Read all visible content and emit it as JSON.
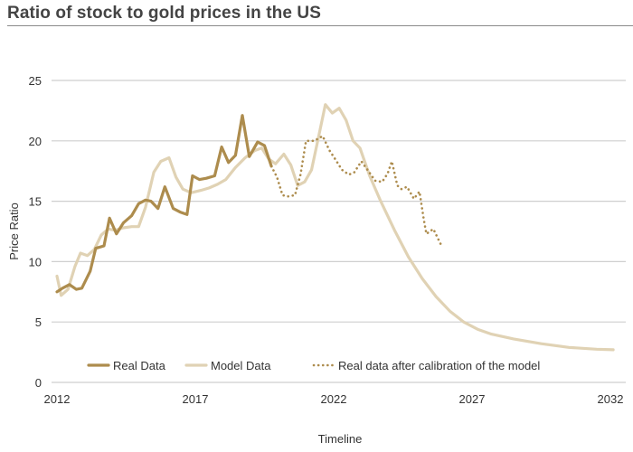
{
  "title": "Ratio of stock to gold prices in the US",
  "chart_data": {
    "type": "line",
    "title": "Ratio of stock to gold prices in the US",
    "xlabel": "Timeline",
    "ylabel": "Price Ratio",
    "xlim": [
      2012,
      2032
    ],
    "ylim": [
      0,
      25
    ],
    "x_ticks": [
      "2012",
      "2017",
      "2022",
      "2027",
      "2032"
    ],
    "y_ticks": [
      "0",
      "5",
      "10",
      "15",
      "20",
      "25"
    ],
    "grid": "horizontal",
    "legend_position": "bottom-inside",
    "series": [
      {
        "name": "Model Data",
        "style": "solid-light",
        "color": "#e0d2b4",
        "points": [
          [
            2012.0,
            8.8
          ],
          [
            2012.15,
            7.2
          ],
          [
            2012.4,
            7.7
          ],
          [
            2012.65,
            9.6
          ],
          [
            2012.85,
            10.7
          ],
          [
            2013.1,
            10.5
          ],
          [
            2013.35,
            11.0
          ],
          [
            2013.6,
            12.2
          ],
          [
            2013.85,
            12.7
          ],
          [
            2014.1,
            12.6
          ],
          [
            2014.4,
            12.8
          ],
          [
            2014.7,
            12.9
          ],
          [
            2014.95,
            12.9
          ],
          [
            2015.2,
            14.5
          ],
          [
            2015.5,
            17.4
          ],
          [
            2015.75,
            18.3
          ],
          [
            2016.05,
            18.6
          ],
          [
            2016.3,
            17.0
          ],
          [
            2016.55,
            16.0
          ],
          [
            2016.85,
            15.7
          ],
          [
            2017.2,
            15.9
          ],
          [
            2017.5,
            16.1
          ],
          [
            2017.8,
            16.4
          ],
          [
            2018.1,
            16.8
          ],
          [
            2018.45,
            17.8
          ],
          [
            2018.8,
            18.6
          ],
          [
            2019.15,
            19.2
          ],
          [
            2019.4,
            19.4
          ],
          [
            2019.65,
            18.5
          ],
          [
            2019.9,
            18.1
          ],
          [
            2020.2,
            18.9
          ],
          [
            2020.45,
            18.0
          ],
          [
            2020.7,
            16.3
          ],
          [
            2020.95,
            16.6
          ],
          [
            2021.2,
            17.6
          ],
          [
            2021.45,
            20.3
          ],
          [
            2021.7,
            23.0
          ],
          [
            2021.95,
            22.3
          ],
          [
            2022.2,
            22.7
          ],
          [
            2022.45,
            21.7
          ],
          [
            2022.7,
            20.0
          ],
          [
            2022.95,
            19.4
          ],
          [
            2023.3,
            17.1
          ],
          [
            2023.7,
            15.0
          ],
          [
            2024.2,
            12.6
          ],
          [
            2024.7,
            10.4
          ],
          [
            2025.2,
            8.6
          ],
          [
            2025.7,
            7.1
          ],
          [
            2026.2,
            5.9
          ],
          [
            2026.7,
            5.0
          ],
          [
            2027.2,
            4.4
          ],
          [
            2027.7,
            4.0
          ],
          [
            2028.5,
            3.6
          ],
          [
            2029.5,
            3.2
          ],
          [
            2030.5,
            2.9
          ],
          [
            2031.5,
            2.75
          ],
          [
            2032.1,
            2.7
          ]
        ]
      },
      {
        "name": "Real Data",
        "style": "solid-dark",
        "color": "#ad8c4d",
        "points": [
          [
            2012.0,
            7.5
          ],
          [
            2012.2,
            7.8
          ],
          [
            2012.45,
            8.1
          ],
          [
            2012.7,
            7.7
          ],
          [
            2012.9,
            7.8
          ],
          [
            2013.2,
            9.2
          ],
          [
            2013.4,
            11.1
          ],
          [
            2013.7,
            11.3
          ],
          [
            2013.9,
            13.6
          ],
          [
            2014.15,
            12.3
          ],
          [
            2014.4,
            13.2
          ],
          [
            2014.7,
            13.8
          ],
          [
            2014.95,
            14.8
          ],
          [
            2015.2,
            15.1
          ],
          [
            2015.4,
            15.0
          ],
          [
            2015.65,
            14.4
          ],
          [
            2015.9,
            16.2
          ],
          [
            2016.2,
            14.4
          ],
          [
            2016.45,
            14.1
          ],
          [
            2016.7,
            13.9
          ],
          [
            2016.9,
            17.1
          ],
          [
            2017.15,
            16.8
          ],
          [
            2017.4,
            16.9
          ],
          [
            2017.7,
            17.1
          ],
          [
            2017.95,
            19.5
          ],
          [
            2018.2,
            18.2
          ],
          [
            2018.45,
            18.8
          ],
          [
            2018.7,
            22.1
          ],
          [
            2018.95,
            18.7
          ],
          [
            2019.25,
            19.9
          ],
          [
            2019.5,
            19.6
          ],
          [
            2019.75,
            17.9
          ]
        ]
      },
      {
        "name": "Real data after calibration of the model",
        "style": "dotted",
        "color": "#ad8c4d",
        "points": [
          [
            2019.75,
            17.9
          ],
          [
            2019.95,
            17.0
          ],
          [
            2020.15,
            15.5
          ],
          [
            2020.35,
            15.4
          ],
          [
            2020.6,
            15.5
          ],
          [
            2020.8,
            17.2
          ],
          [
            2021.0,
            20.0
          ],
          [
            2021.3,
            20.0
          ],
          [
            2021.6,
            20.4
          ],
          [
            2021.85,
            19.2
          ],
          [
            2022.05,
            18.5
          ],
          [
            2022.3,
            17.6
          ],
          [
            2022.55,
            17.2
          ],
          [
            2022.75,
            17.4
          ],
          [
            2023.0,
            18.3
          ],
          [
            2023.25,
            17.5
          ],
          [
            2023.5,
            16.7
          ],
          [
            2023.75,
            16.6
          ],
          [
            2023.95,
            17.3
          ],
          [
            2024.1,
            18.3
          ],
          [
            2024.3,
            16.3
          ],
          [
            2024.45,
            16.0
          ],
          [
            2024.65,
            16.2
          ],
          [
            2024.9,
            15.2
          ],
          [
            2025.1,
            15.8
          ],
          [
            2025.25,
            13.6
          ],
          [
            2025.35,
            12.3
          ],
          [
            2025.6,
            12.7
          ],
          [
            2025.9,
            11.3
          ]
        ]
      }
    ],
    "legend": [
      {
        "label": "Real Data",
        "style": "solid-dark",
        "color": "#ad8c4d"
      },
      {
        "label": "Model Data",
        "style": "solid-light",
        "color": "#e0d2b4"
      },
      {
        "label": "Real data after calibration of the model",
        "style": "dotted",
        "color": "#ad8c4d"
      }
    ]
  }
}
